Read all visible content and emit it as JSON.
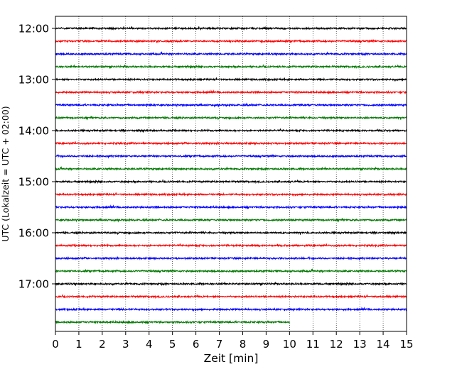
{
  "chart_data": {
    "type": "line",
    "xlabel": "Zeit  [min]",
    "ylabel": "UTC (Lokalzeit = UTC + 02:00)",
    "xlim": [
      0,
      15
    ],
    "x_ticks": [
      "0",
      "1",
      "2",
      "3",
      "4",
      "5",
      "6",
      "7",
      "8",
      "9",
      "10",
      "11",
      "12",
      "13",
      "14",
      "15"
    ],
    "y_tick_labels": [
      "12:00",
      "13:00",
      "14:00",
      "15:00",
      "16:00",
      "17:00"
    ],
    "grid": "vertical dotted lines at each minute",
    "trace_interval_minutes": 15,
    "trace_colors": [
      "#000000",
      "#ff0000",
      "#0000ff",
      "#007800"
    ],
    "series": [
      {
        "start": "12:00",
        "end_min": 15
      },
      {
        "start": "12:15",
        "end_min": 15
      },
      {
        "start": "12:30",
        "end_min": 15
      },
      {
        "start": "12:45",
        "end_min": 15
      },
      {
        "start": "13:00",
        "end_min": 15
      },
      {
        "start": "13:15",
        "end_min": 15
      },
      {
        "start": "13:30",
        "end_min": 15
      },
      {
        "start": "13:45",
        "end_min": 15
      },
      {
        "start": "14:00",
        "end_min": 15
      },
      {
        "start": "14:15",
        "end_min": 15
      },
      {
        "start": "14:30",
        "end_min": 15
      },
      {
        "start": "14:45",
        "end_min": 15
      },
      {
        "start": "15:00",
        "end_min": 15
      },
      {
        "start": "15:15",
        "end_min": 15
      },
      {
        "start": "15:30",
        "end_min": 15
      },
      {
        "start": "15:45",
        "end_min": 15
      },
      {
        "start": "16:00",
        "end_min": 15
      },
      {
        "start": "16:15",
        "end_min": 15
      },
      {
        "start": "16:30",
        "end_min": 15
      },
      {
        "start": "16:45",
        "end_min": 15
      },
      {
        "start": "17:00",
        "end_min": 15
      },
      {
        "start": "17:15",
        "end_min": 15
      },
      {
        "start": "17:30",
        "end_min": 15
      },
      {
        "start": "17:45",
        "end_min": 10
      }
    ]
  }
}
